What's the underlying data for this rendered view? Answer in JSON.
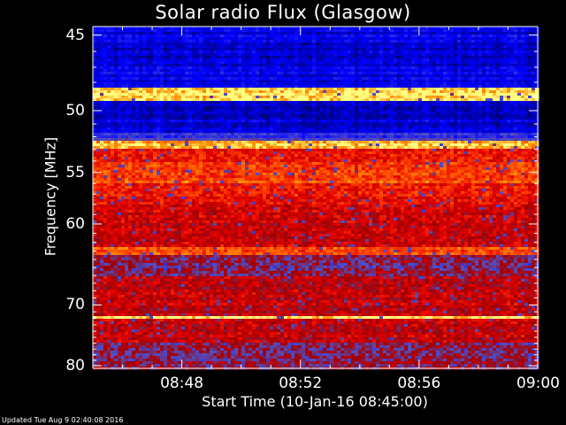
{
  "chart_data": {
    "type": "heatmap",
    "title": "Solar radio Flux (Glasgow)",
    "xlabel": "Start Time (10-Jan-16 08:45:00)",
    "ylabel": "Frequency [MHz]",
    "x_ticks": [
      "08:48",
      "08:52",
      "08:56",
      "09:00"
    ],
    "x_tick_minutes": [
      48,
      52,
      56,
      60
    ],
    "xlim_minutes": [
      45,
      60
    ],
    "y_ticks": [
      45,
      50,
      55,
      60,
      70,
      80
    ],
    "ylim": [
      44.5,
      80.5
    ],
    "y_scale": "reciprocal",
    "colormap": [
      "#00005a",
      "#0000ff",
      "#5050c8",
      "#a00000",
      "#e00000",
      "#ff4000",
      "#ff8c00",
      "#ffff80"
    ],
    "bands": [
      {
        "from": 44.5,
        "to": 48.4,
        "level": 0.12
      },
      {
        "from": 48.4,
        "to": 49.3,
        "level": 0.98
      },
      {
        "from": 49.3,
        "to": 51.6,
        "level": 0.1
      },
      {
        "from": 51.6,
        "to": 52.4,
        "level": 0.25
      },
      {
        "from": 52.4,
        "to": 53.0,
        "level": 0.92
      },
      {
        "from": 53.0,
        "to": 54.0,
        "level": 0.6
      },
      {
        "from": 54.0,
        "to": 56.0,
        "level": 0.72
      },
      {
        "from": 56.0,
        "to": 58.0,
        "level": 0.62
      },
      {
        "from": 58.0,
        "to": 62.5,
        "level": 0.52
      },
      {
        "from": 62.5,
        "to": 63.5,
        "level": 0.75
      },
      {
        "from": 63.5,
        "to": 66.0,
        "level": 0.38
      },
      {
        "from": 66.0,
        "to": 71.5,
        "level": 0.5
      },
      {
        "from": 71.5,
        "to": 72.2,
        "level": 0.97
      },
      {
        "from": 72.2,
        "to": 76.0,
        "level": 0.5
      },
      {
        "from": 76.0,
        "to": 80.5,
        "level": 0.4
      }
    ]
  },
  "footer": "Updated Tue Aug  9 02:40:08 2016"
}
